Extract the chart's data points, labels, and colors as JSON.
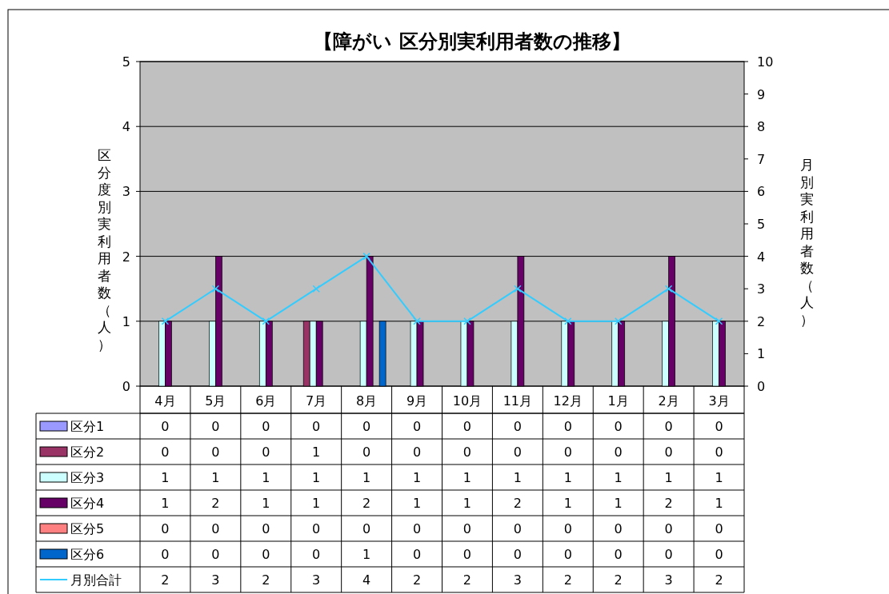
{
  "chart_data": {
    "type": "bar",
    "title": "【障がい  区分別実利用者数の推移】",
    "ylabel": "区分度別実利用者数（人）",
    "y2label": "月別実利用者数（人）",
    "categories": [
      "4月",
      "5月",
      "6月",
      "7月",
      "8月",
      "9月",
      "10月",
      "11月",
      "12月",
      "1月",
      "2月",
      "3月"
    ],
    "ylim": [
      0,
      5
    ],
    "yticks": [
      0,
      1,
      2,
      3,
      4,
      5
    ],
    "y2lim": [
      0,
      10
    ],
    "y2ticks": [
      0,
      1,
      2,
      3,
      4,
      5,
      6,
      7,
      8,
      9,
      10
    ],
    "grid": "y",
    "legend": "bottom",
    "data_labels": true,
    "marker": "cross",
    "series": [
      {
        "name": "区分1",
        "color": "#9999ff",
        "values": [
          0,
          0,
          0,
          0,
          0,
          0,
          0,
          0,
          0,
          0,
          0,
          0
        ]
      },
      {
        "name": "区分2",
        "color": "#993366",
        "values": [
          0,
          0,
          0,
          1,
          0,
          0,
          0,
          0,
          0,
          0,
          0,
          0
        ]
      },
      {
        "name": "区分3",
        "color": "#ccffff",
        "values": [
          1,
          1,
          1,
          1,
          1,
          1,
          1,
          1,
          1,
          1,
          1,
          1
        ]
      },
      {
        "name": "区分4",
        "color": "#660066",
        "values": [
          1,
          2,
          1,
          1,
          2,
          1,
          1,
          2,
          1,
          1,
          2,
          1
        ]
      },
      {
        "name": "区分5",
        "color": "#ff8080",
        "values": [
          0,
          0,
          0,
          0,
          0,
          0,
          0,
          0,
          0,
          0,
          0,
          0
        ]
      },
      {
        "name": "区分6",
        "color": "#0066cc",
        "values": [
          0,
          0,
          0,
          0,
          1,
          0,
          0,
          0,
          0,
          0,
          0,
          0
        ]
      },
      {
        "name": "月別合計",
        "type": "line",
        "axis": "y2",
        "color": "#33ccff",
        "values": [
          2,
          3,
          2,
          3,
          4,
          2,
          2,
          3,
          2,
          2,
          3,
          2
        ]
      }
    ]
  }
}
